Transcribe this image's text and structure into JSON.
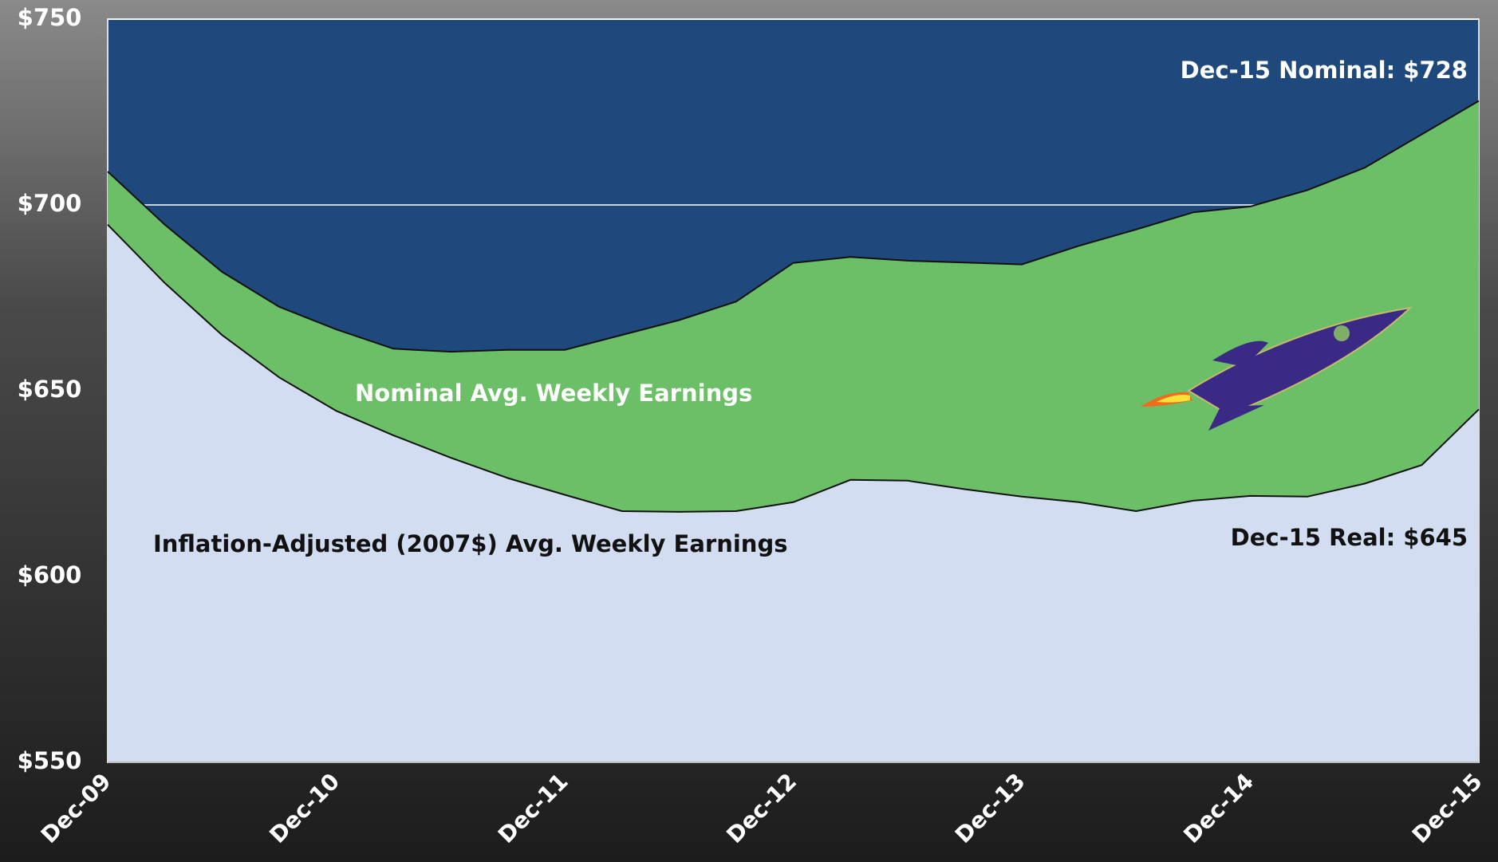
{
  "chart_data": {
    "type": "area",
    "categories": [
      "Dec-09",
      null,
      null,
      null,
      "Dec-10",
      null,
      null,
      null,
      "Dec-11",
      null,
      null,
      null,
      "Dec-12",
      null,
      null,
      null,
      "Dec-13",
      null,
      null,
      null,
      "Dec-14",
      null,
      null,
      null,
      "Dec-15"
    ],
    "series": [
      {
        "name": "Nominal  Avg. Weekly Earnings",
        "color": "#6bbf66",
        "values": [
          709,
          694.7,
          682,
          672.6,
          666.5,
          661.3,
          660.5,
          661,
          661,
          665,
          669,
          674,
          684.4,
          686,
          685,
          684.5,
          684,
          689,
          693.4,
          698,
          699.6,
          704,
          710,
          719,
          728
        ]
      },
      {
        "name": "Inflation-Adjusted (2007$) Avg. Weekly Earnings",
        "color": "#d3ddf1",
        "values": [
          694.7,
          679,
          665,
          653.6,
          644.6,
          638,
          632,
          626.5,
          622,
          617.6,
          617.4,
          617.6,
          620,
          626,
          625.8,
          623.5,
          621.5,
          620,
          617.6,
          620.4,
          621.7,
          621.5,
          625,
          630,
          645
        ]
      }
    ],
    "annotations": [
      "Dec-15 Nominal: $728",
      "Dec-15 Real: $645"
    ],
    "plot_background": "#1f487c",
    "ylim": [
      550,
      750
    ],
    "yticks": [
      {
        "value": 550,
        "label": "$550"
      },
      {
        "value": 600,
        "label": "$600"
      },
      {
        "value": 650,
        "label": "$650"
      },
      {
        "value": 700,
        "label": "$700"
      },
      {
        "value": 750,
        "label": "$750"
      }
    ],
    "grid": true
  }
}
